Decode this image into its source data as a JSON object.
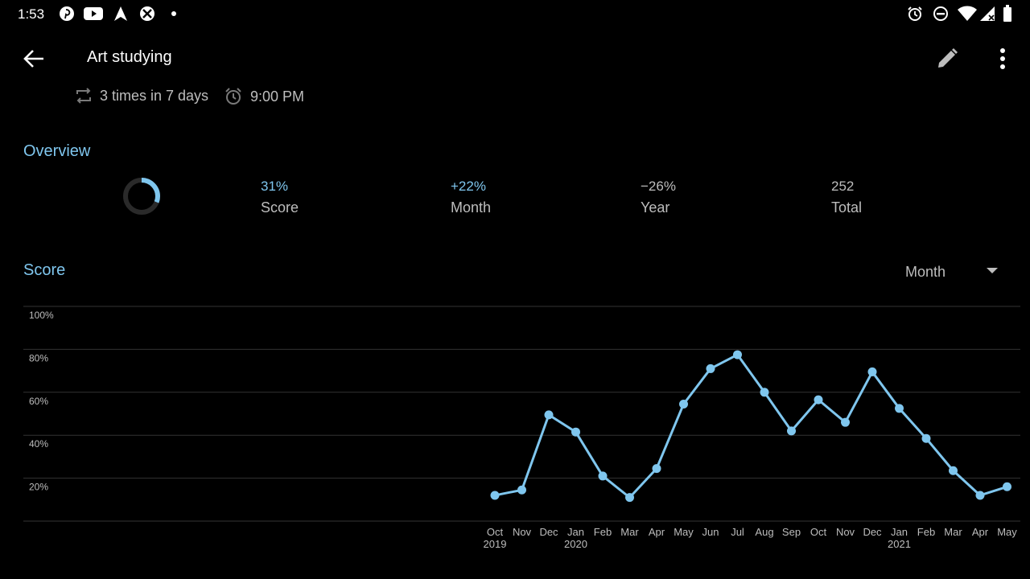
{
  "status_bar": {
    "time": "1:53",
    "left_icons": [
      "pinterest-icon",
      "youtube-icon",
      "navigation-arrow-icon",
      "xbox-icon",
      "dot-icon"
    ],
    "right_icons": [
      "alarm-icon",
      "do-not-disturb-icon",
      "wifi-icon",
      "cell-signal-icon",
      "battery-icon"
    ]
  },
  "app_bar": {
    "title": "Art studying",
    "back_icon": "back-arrow-icon",
    "edit_icon": "pencil-icon",
    "menu_icon": "more-vert-icon"
  },
  "habit": {
    "frequency": "3 times in 7 days",
    "reminder": "9:00 PM"
  },
  "overview": {
    "title": "Overview",
    "ring_fraction": 0.31,
    "stats": [
      {
        "value": "31%",
        "label": "Score"
      },
      {
        "value": "+22%",
        "label": "Month"
      },
      {
        "value": "−26%",
        "label": "Year"
      },
      {
        "value": "252",
        "label": "Total"
      }
    ]
  },
  "score": {
    "title": "Score",
    "period": "Month"
  },
  "colors": {
    "accent": "#7fc6ee",
    "background": "#000000",
    "secondary_text": "#bdbdbd",
    "grid": "#333333",
    "ring_track": "#2a2a2a"
  },
  "chart_data": {
    "type": "line",
    "ytick_labels": [
      "100%",
      "80%",
      "60%",
      "40%",
      "20%"
    ],
    "yticks": [
      100,
      80,
      60,
      40,
      20
    ],
    "ylim": [
      0,
      100
    ],
    "categories": [
      "Oct",
      "Nov",
      "Dec",
      "Jan",
      "Feb",
      "Mar",
      "Apr",
      "May",
      "Jun",
      "Jul",
      "Aug",
      "Sep",
      "Oct",
      "Nov",
      "Dec",
      "Jan",
      "Feb",
      "Mar",
      "Apr",
      "May"
    ],
    "year_labels": {
      "0": "2019",
      "3": "2020",
      "15": "2021"
    },
    "values": [
      12,
      14.5,
      49.5,
      41.5,
      21,
      11,
      24.5,
      54.5,
      71,
      77.5,
      60,
      42,
      56.5,
      46,
      69.5,
      52.5,
      38.5,
      23.5,
      12,
      16
    ],
    "grid": true
  }
}
